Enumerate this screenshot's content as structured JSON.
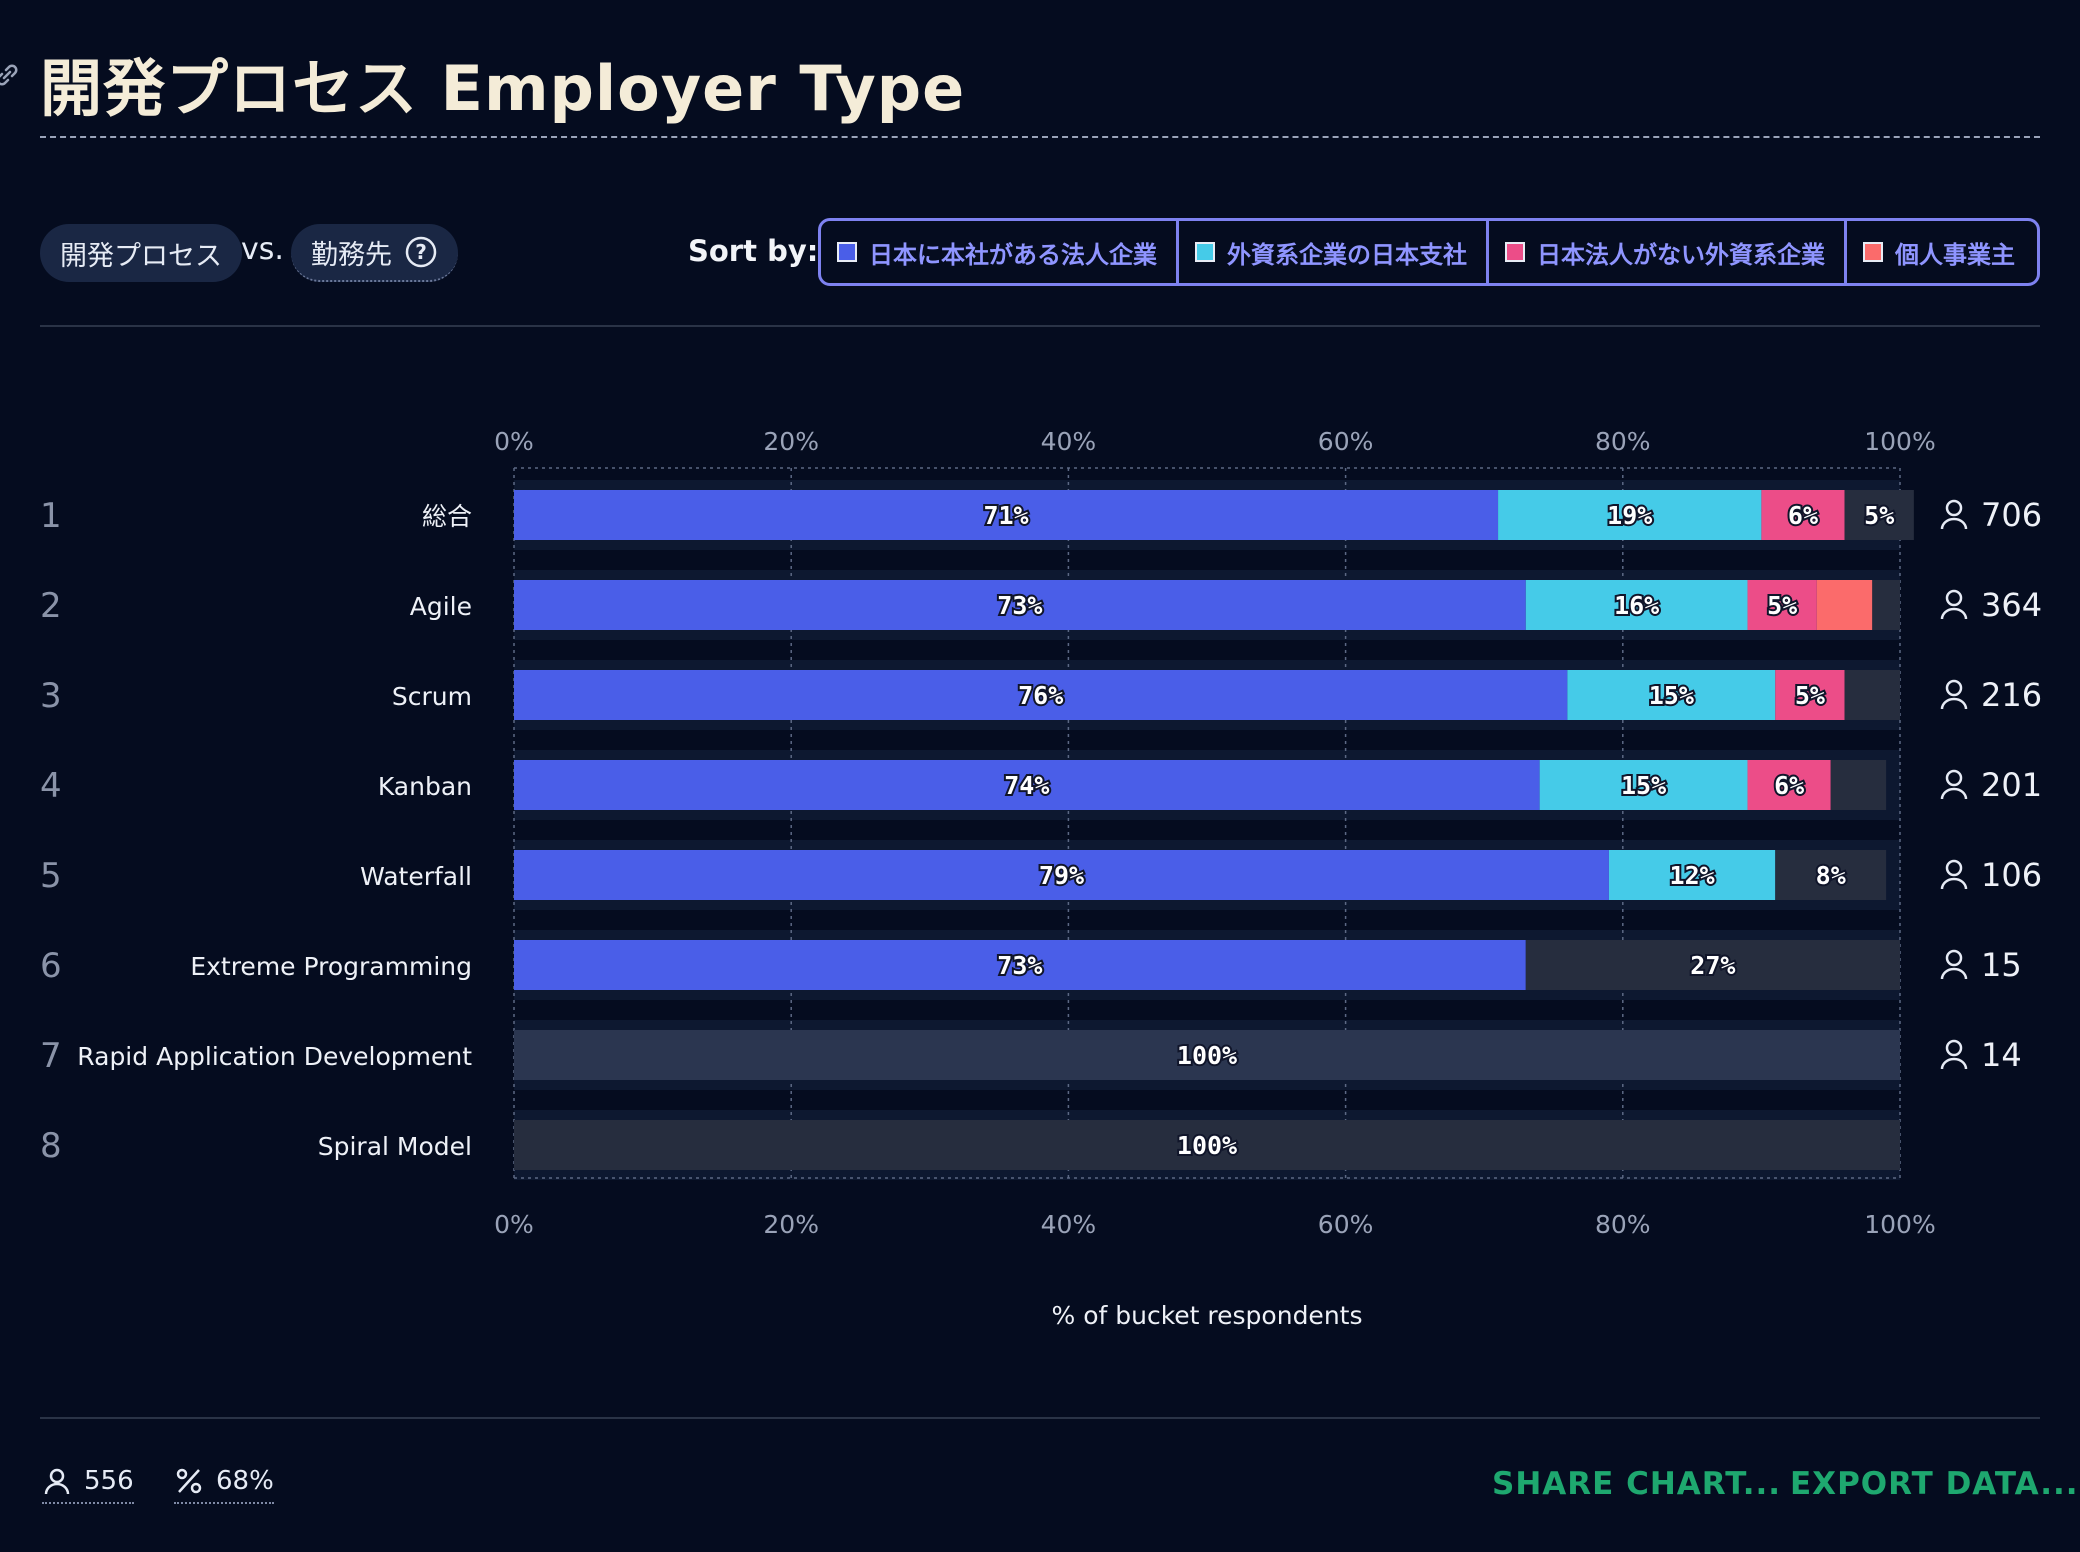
{
  "title": "開発プロセス Employer Type",
  "filters": {
    "primary": "開発プロセス",
    "vs": "vs.",
    "secondary": "勤務先"
  },
  "sort": {
    "label": "Sort by:",
    "options": [
      {
        "label": "日本に本社がある法人企業",
        "color": "#4a5ee8"
      },
      {
        "label": "外資系企業の日本支社",
        "color": "#45cbe8"
      },
      {
        "label": "日本法人がない外資系企業",
        "color": "#ec4d88"
      },
      {
        "label": "個人事業主",
        "color": "#fb6b6b"
      }
    ]
  },
  "chart_data": {
    "type": "bar",
    "orientation": "horizontal",
    "stacked": true,
    "xlabel": "% of bucket respondents",
    "xlim": [
      0,
      100
    ],
    "x_ticks": [
      "0%",
      "20%",
      "40%",
      "60%",
      "80%",
      "100%"
    ],
    "categories": [
      "総合",
      "Agile",
      "Scrum",
      "Kanban",
      "Waterfall",
      "Extreme Programming",
      "Rapid Application Development",
      "Spiral Model"
    ],
    "ranks": [
      "1",
      "2",
      "3",
      "4",
      "5",
      "6",
      "7",
      "8"
    ],
    "respondents": [
      "706",
      "364",
      "216",
      "201",
      "106",
      "15",
      "14",
      ""
    ],
    "series": [
      {
        "name": "日本に本社がある法人企業",
        "color": "#4a5ee8",
        "values": [
          71,
          73,
          76,
          74,
          79,
          73,
          0,
          0
        ]
      },
      {
        "name": "外資系企業の日本支社",
        "color": "#45cbe8",
        "values": [
          19,
          16,
          15,
          15,
          12,
          0,
          0,
          0
        ]
      },
      {
        "name": "日本法人がない外資系企業",
        "color": "#ec4d88",
        "values": [
          6,
          5,
          5,
          6,
          0,
          0,
          0,
          0
        ]
      },
      {
        "name": "個人事業主",
        "color": "#fb6b6b",
        "values": [
          0,
          4,
          0,
          0,
          0,
          0,
          0,
          0
        ]
      },
      {
        "name": "",
        "color": "#262d3e",
        "values": [
          5,
          2,
          4,
          4,
          8,
          27,
          100,
          100
        ]
      }
    ],
    "bar_labels": [
      [
        "71%",
        "19%",
        "6%",
        "",
        "5%"
      ],
      [
        "73%",
        "16%",
        "5%",
        "",
        ""
      ],
      [
        "76%",
        "15%",
        "5%",
        "",
        ""
      ],
      [
        "74%",
        "15%",
        "6%",
        "",
        ""
      ],
      [
        "79%",
        "12%",
        "",
        "",
        "8%"
      ],
      [
        "73%",
        "",
        "",
        "",
        "27%"
      ],
      [
        "",
        "",
        "",
        "",
        "100%"
      ],
      [
        "",
        "",
        "",
        "",
        "100%"
      ]
    ],
    "grid": true
  },
  "footer": {
    "total": "556",
    "percent": "68%",
    "share": "SHARE CHART...",
    "export": "EXPORT DATA..."
  }
}
